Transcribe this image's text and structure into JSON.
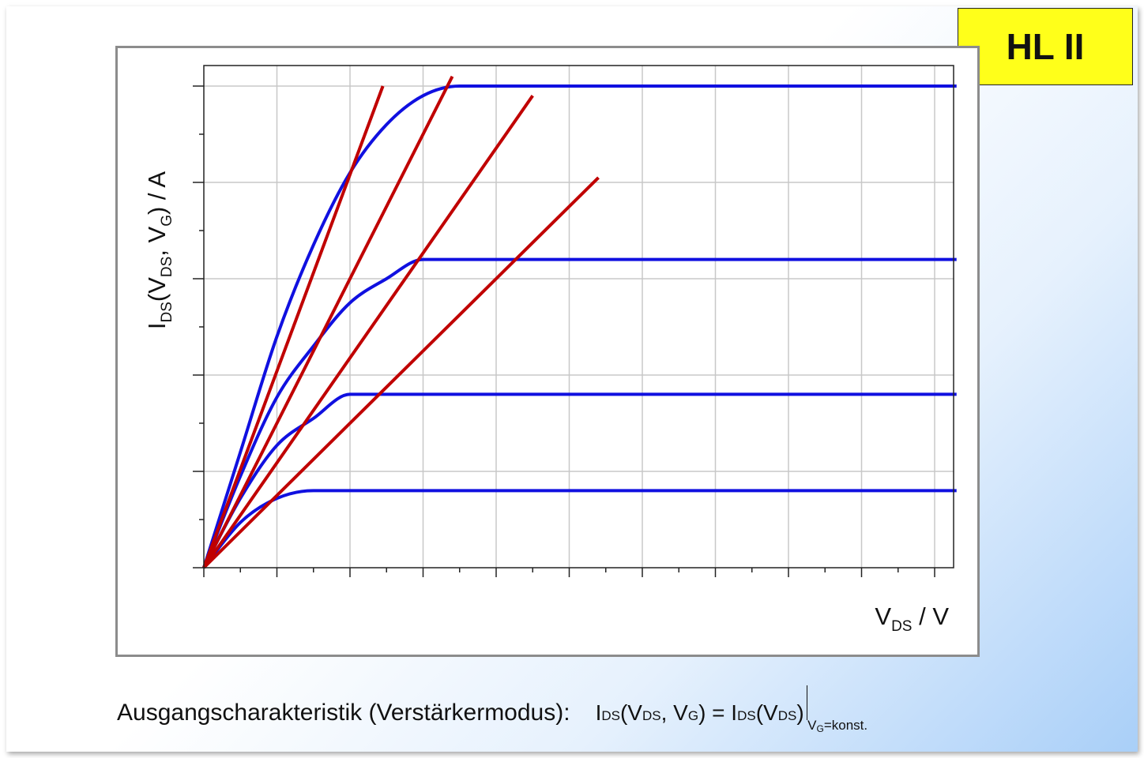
{
  "badge": {
    "label": "HL II"
  },
  "chart_data": {
    "type": "line",
    "title": "",
    "ylabel_parts": {
      "main": "I",
      "sub1": "DS",
      "open": "(V",
      "sub2": "DS",
      "mid": ", V",
      "sub3": "G",
      "close": ") / A"
    },
    "xlabel_parts": {
      "main": "V",
      "sub": "DS",
      "rest": " / V"
    },
    "xlim": [
      0,
      10.3
    ],
    "ylim": [
      0,
      5.2
    ],
    "grid": true,
    "x_grid_step": 1,
    "y_grid_step": 1,
    "x_minor_step": 0.5,
    "y_minor_step": 0.5,
    "series": [
      {
        "color": "#1010e0",
        "points": [
          [
            0,
            0
          ],
          [
            0.5,
            0.47
          ],
          [
            1,
            0.72
          ],
          [
            1.5,
            0.8
          ],
          [
            10.3,
            0.8
          ]
        ]
      },
      {
        "color": "#1010e0",
        "points": [
          [
            0,
            0
          ],
          [
            0.5,
            0.72
          ],
          [
            1,
            1.27
          ],
          [
            1.5,
            1.55
          ],
          [
            2,
            1.8
          ],
          [
            10.3,
            1.8
          ]
        ]
      },
      {
        "color": "#1010e0",
        "points": [
          [
            0,
            0
          ],
          [
            0.5,
            0.95
          ],
          [
            1,
            1.77
          ],
          [
            1.5,
            2.3
          ],
          [
            2,
            2.75
          ],
          [
            2.5,
            3.0
          ],
          [
            3,
            3.2
          ],
          [
            10.3,
            3.2
          ]
        ]
      },
      {
        "color": "#1010e0",
        "points": [
          [
            0,
            0
          ],
          [
            0.5,
            1.2
          ],
          [
            1,
            2.4
          ],
          [
            1.5,
            3.35
          ],
          [
            2,
            4.1
          ],
          [
            2.5,
            4.6
          ],
          [
            3,
            4.9
          ],
          [
            3.5,
            5.0
          ],
          [
            10.3,
            5.0
          ]
        ]
      },
      {
        "color": "#c00000",
        "points": [
          [
            0,
            0
          ],
          [
            2.45,
            5.0
          ]
        ]
      },
      {
        "color": "#c00000",
        "points": [
          [
            0,
            0
          ],
          [
            3.4,
            5.1
          ]
        ]
      },
      {
        "color": "#c00000",
        "points": [
          [
            0,
            0
          ],
          [
            4.5,
            4.9
          ]
        ]
      },
      {
        "color": "#c00000",
        "points": [
          [
            0,
            0
          ],
          [
            5.4,
            4.05
          ]
        ]
      }
    ]
  },
  "caption": {
    "text": "Ausgangscharakteristik (Verstärkermodus):",
    "f_I1": "I",
    "f_DS1": "DS",
    "f_p1": "(V",
    "f_DS2": "DS",
    "f_c": ", V",
    "f_G": "G",
    "f_eq": ") = I",
    "f_DS3": "DS",
    "f_p2": "(V",
    "f_DS4": "DS",
    "f_p3": ")",
    "cond_v": "V",
    "cond_g": "G",
    "cond_rest": "=konst."
  }
}
